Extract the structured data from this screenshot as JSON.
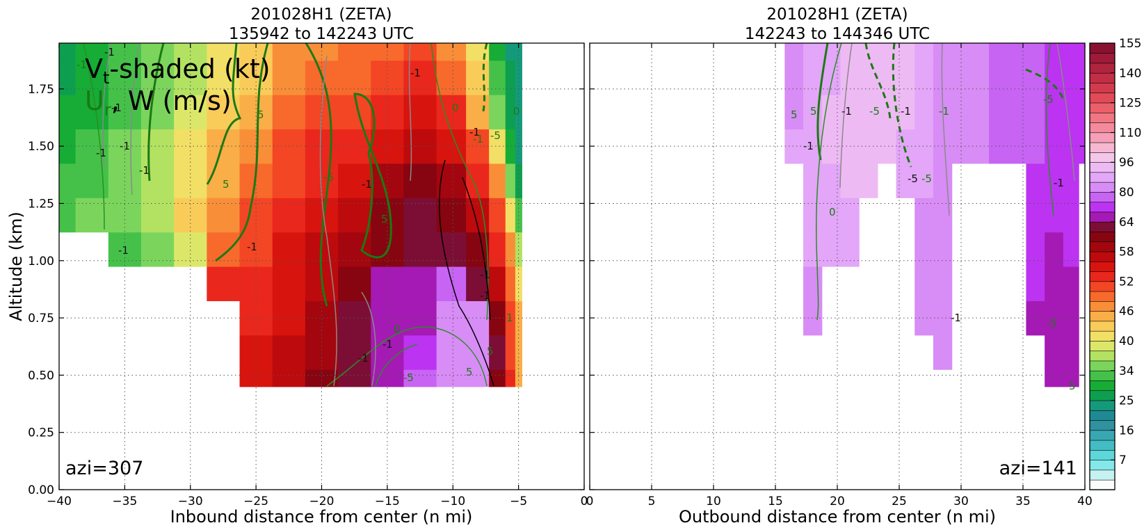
{
  "figure": {
    "left_title": [
      "201028H1 (ZETA)",
      "135942 to 142243 UTC"
    ],
    "right_title": [
      "201028H1 (ZETA)",
      "142243 to 144346 UTC"
    ],
    "ylabel": "Altitude (km)",
    "left_xlabel": "Inbound distance from center (n mi)",
    "right_xlabel": "Outbound distance from center (n mi)",
    "legend_line1_main": "V",
    "legend_line1_sub": "t",
    "legend_line1_rest": "-shaded (kt)",
    "legend_line2_main": "U",
    "legend_line2_sub": "r",
    "legend_line2_rest": ", W (m/s)",
    "left_azi": "azi=307",
    "right_azi": "azi=141"
  },
  "chart_data": [
    {
      "type": "heatmap",
      "panel": "left",
      "title": "201028H1 (ZETA) 135942 to 142243 UTC",
      "xlabel": "Inbound distance from center (n mi)",
      "ylabel": "Altitude (km)",
      "xlim": [
        -40,
        0
      ],
      "ylim": [
        0.0,
        1.95
      ],
      "xticks": [
        "−40",
        "−35",
        "−30",
        "−25",
        "−20",
        "−15",
        "−10",
        "−5",
        "0"
      ],
      "yticks": [
        "0.00",
        "0.25",
        "0.50",
        "0.75",
        "1.00",
        "1.25",
        "1.50",
        "1.75"
      ],
      "grid": true,
      "x": [
        -40,
        -37.5,
        -35,
        -32.5,
        -30,
        -27.5,
        -25,
        -22.5,
        -20,
        -17.5,
        -15,
        -12.5,
        -10,
        -8,
        -6.5,
        -5.5,
        -5
      ],
      "y": [
        0.45,
        0.6,
        0.75,
        0.9,
        1.05,
        1.2,
        1.35,
        1.5,
        1.65,
        1.8,
        1.95
      ],
      "vt_kt": [
        [
          null,
          null,
          null,
          null,
          null,
          null,
          55,
          57,
          60,
          62,
          66,
          78,
          82,
          80,
          60,
          52,
          44
        ],
        [
          null,
          null,
          null,
          null,
          null,
          null,
          54,
          56,
          58,
          62,
          64,
          72,
          80,
          82,
          62,
          50,
          44
        ],
        [
          null,
          null,
          null,
          null,
          null,
          null,
          53,
          55,
          58,
          62,
          64,
          66,
          80,
          82,
          60,
          50,
          44
        ],
        [
          null,
          null,
          null,
          null,
          null,
          52,
          52,
          55,
          57,
          60,
          64,
          64,
          78,
          62,
          56,
          48,
          40
        ],
        [
          null,
          null,
          32,
          34,
          39,
          48,
          51,
          54,
          56,
          59,
          61,
          63,
          63,
          60,
          53,
          46,
          36
        ],
        [
          33,
          34,
          35,
          37,
          42,
          46,
          50,
          53,
          55,
          57,
          60,
          62,
          60,
          56,
          50,
          40,
          32
        ],
        [
          32,
          33,
          35,
          37,
          41,
          45,
          48,
          51,
          53,
          55,
          58,
          60,
          58,
          53,
          46,
          35,
          25
        ],
        [
          30,
          32,
          34,
          36,
          40,
          44,
          47,
          50,
          52,
          53,
          55,
          57,
          55,
          50,
          40,
          30,
          24
        ],
        [
          28,
          30,
          32,
          35,
          38,
          42,
          45,
          48,
          50,
          51,
          53,
          54,
          52,
          45,
          34,
          27,
          22
        ],
        [
          27,
          29,
          31,
          34,
          37,
          40,
          43,
          46,
          48,
          49,
          50,
          52,
          49,
          42,
          32,
          25,
          22
        ],
        [
          27,
          29,
          31,
          34,
          37,
          40,
          43,
          46,
          47,
          48,
          49,
          50,
          47,
          40,
          30,
          24,
          22
        ]
      ]
    },
    {
      "type": "heatmap",
      "panel": "right",
      "title": "201028H1 (ZETA) 142243 to 144346 UTC",
      "xlabel": "Outbound distance from center (n mi)",
      "xlim": [
        0,
        40
      ],
      "ylim": [
        0.0,
        1.95
      ],
      "xticks": [
        "0",
        "5",
        "10",
        "15",
        "20",
        "25",
        "30",
        "35",
        "40"
      ],
      "yticks": [
        "0.00",
        "0.25",
        "0.50",
        "0.75",
        "1.00",
        "1.25",
        "1.50",
        "1.75"
      ],
      "grid": true,
      "x": [
        16.5,
        18,
        19.5,
        21,
        22.5,
        24,
        25.5,
        27,
        28.5,
        30,
        34.5,
        36,
        37.5,
        39,
        40
      ],
      "y": [
        0.45,
        0.6,
        0.75,
        0.9,
        1.05,
        1.2,
        1.35,
        1.5,
        1.65,
        1.8,
        1.95
      ],
      "vt_kt": [
        [
          null,
          null,
          null,
          null,
          null,
          null,
          null,
          null,
          null,
          null,
          null,
          null,
          66,
          66,
          null
        ],
        [
          null,
          null,
          null,
          null,
          null,
          null,
          null,
          null,
          83,
          null,
          null,
          null,
          68,
          68,
          null
        ],
        [
          null,
          85,
          null,
          null,
          null,
          null,
          null,
          83,
          83,
          null,
          null,
          69,
          68,
          68,
          null
        ],
        [
          null,
          85,
          null,
          null,
          null,
          null,
          null,
          83,
          83,
          null,
          null,
          70,
          68,
          68,
          null
        ],
        [
          null,
          86,
          88,
          88,
          null,
          null,
          null,
          84,
          82,
          null,
          null,
          71,
          69,
          70,
          null
        ],
        [
          null,
          87,
          89,
          90,
          null,
          null,
          null,
          85,
          82,
          null,
          null,
          72,
          70,
          72,
          null
        ],
        [
          null,
          87,
          90,
          92,
          92,
          null,
          90,
          86,
          83,
          null,
          null,
          74,
          71,
          72,
          null
        ],
        [
          86,
          88,
          91,
          92,
          92,
          91,
          90,
          88,
          84,
          82,
          78,
          76,
          74,
          74,
          72
        ],
        [
          85,
          88,
          91,
          92,
          93,
          92,
          91,
          88,
          84,
          82,
          78,
          76,
          74,
          74,
          72
        ],
        [
          84,
          87,
          90,
          92,
          93,
          92,
          91,
          88,
          84,
          82,
          78,
          76,
          74,
          74,
          72
        ],
        [
          84,
          87,
          90,
          92,
          93,
          92,
          91,
          88,
          84,
          82,
          78,
          76,
          74,
          74,
          72
        ]
      ]
    }
  ],
  "colorbar": {
    "tick_labels": [
      "155",
      "140",
      "125",
      "110",
      "96",
      "80",
      "64",
      "58",
      "52",
      "46",
      "40",
      "34",
      "25",
      "16",
      "7"
    ],
    "tick_values": [
      155,
      140,
      125,
      110,
      96,
      80,
      64,
      58,
      52,
      46,
      40,
      34,
      25,
      16,
      7
    ],
    "colors": [
      "#fbfcfc",
      "#c6f2f2",
      "#84e8ea",
      "#5cd7da",
      "#44bcc3",
      "#38a7b2",
      "#2f929e",
      "#1f8a94",
      "#149a7a",
      "#0d9f4f",
      "#16ac36",
      "#45c14a",
      "#7bd55c",
      "#b3e262",
      "#dce76a",
      "#f2df66",
      "#f9cc5a",
      "#f9ae47",
      "#f98e39",
      "#f76a2c",
      "#f34624",
      "#ea271c",
      "#d8140f",
      "#bd0a0d",
      "#a3060e",
      "#870510",
      "#7c0e36",
      "#a51ab4",
      "#bc33f2",
      "#c864f4",
      "#d88cf6",
      "#e3a6f8",
      "#eebaf4",
      "#f4c6e8",
      "#f7b7d0",
      "#f69fb8",
      "#f48a9c",
      "#f07682",
      "#ea5f69",
      "#e04b57",
      "#d23b4d",
      "#c22e45",
      "#b0243e",
      "#9e1a38",
      "#8a1231"
    ]
  },
  "contour_labels": {
    "left": [
      "-1",
      "-1",
      "-1",
      "-1",
      "-1",
      "-1",
      "-1",
      "-1",
      "-1",
      "-1",
      "-1",
      "5",
      "5",
      "-5",
      "5",
      "-1",
      "0",
      "-1",
      "-5",
      "0",
      "0",
      "-1",
      "-1",
      "5",
      "1",
      "5",
      "-5",
      "-1"
    ],
    "right": [
      "5",
      "5",
      "-1",
      "-1",
      "-1",
      "-5",
      "-1",
      "-5",
      "-5",
      "5",
      "-5",
      "-1",
      "0",
      "-1",
      "-5"
    ]
  }
}
